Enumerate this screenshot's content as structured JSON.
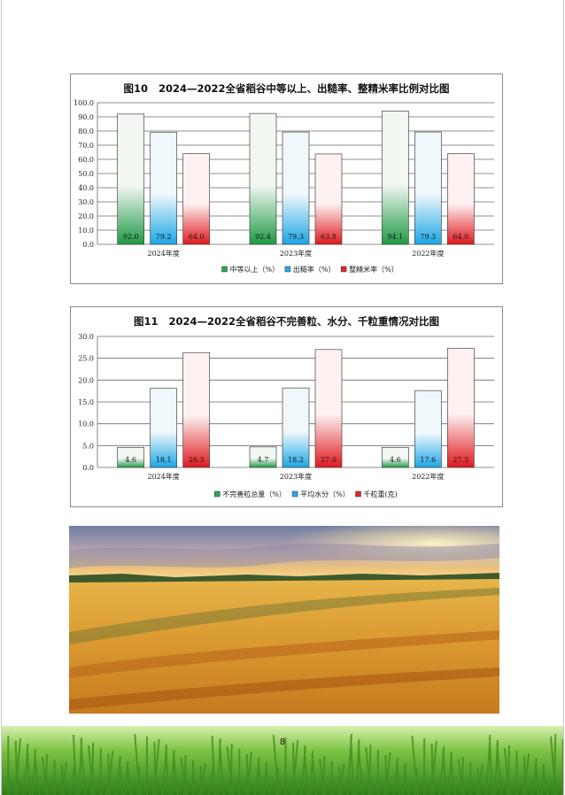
{
  "page": {
    "number": "8"
  },
  "charts": [
    {
      "figure_no": "图10",
      "title": "2024—2022全省稻谷中等以上、出糙率、整精米率比例对比图",
      "categories": [
        "2024年度",
        "2023年度",
        "2022年度"
      ],
      "ylim": [
        0,
        100
      ],
      "yticks": [
        "0.0",
        "10.0",
        "20.0",
        "30.0",
        "40.0",
        "50.0",
        "60.0",
        "70.0",
        "80.0",
        "90.0",
        "100.0"
      ],
      "series": [
        {
          "name": "中等以上（%）",
          "color": "green",
          "values": [
            92.0,
            92.4,
            94.1
          ],
          "labels": [
            "92.0",
            "92.4",
            "94.1"
          ]
        },
        {
          "name": "出糙率（%）",
          "color": "blue",
          "values": [
            79.2,
            79.3,
            79.3
          ],
          "labels": [
            "79.2",
            "79.3",
            "79.3"
          ]
        },
        {
          "name": "整精米率（%）",
          "color": "red",
          "values": [
            64.0,
            63.8,
            64.0
          ],
          "labels": [
            "64.0",
            "63.8",
            "64.0"
          ]
        }
      ]
    },
    {
      "figure_no": "图11",
      "title": "2024—2022全省稻谷不完善粒、水分、千粒重情况对比图",
      "categories": [
        "2024年度",
        "2023年度",
        "2022年度"
      ],
      "ylim": [
        0,
        30
      ],
      "yticks": [
        "0.0",
        "5.0",
        "10.0",
        "15.0",
        "20.0",
        "25.0",
        "30.0"
      ],
      "series": [
        {
          "name": "不完善粒总量（%）",
          "color": "green",
          "values": [
            4.6,
            4.7,
            4.6
          ],
          "labels": [
            "4.6",
            "4.7",
            "4.6"
          ]
        },
        {
          "name": "平均水分（%）",
          "color": "blue",
          "values": [
            18.1,
            18.2,
            17.6
          ],
          "labels": [
            "18.1",
            "18.2",
            "17.6"
          ]
        },
        {
          "name": "千粒重(克)",
          "color": "red",
          "values": [
            26.3,
            27.0,
            27.3
          ],
          "labels": [
            "26.3",
            "27.0",
            "27.3"
          ]
        }
      ]
    }
  ],
  "chart_data": [
    {
      "type": "bar",
      "title": "图10 2024—2022全省稻谷中等以上、出糙率、整精米率比例对比图",
      "categories": [
        "2024年度",
        "2023年度",
        "2022年度"
      ],
      "ylim": [
        0,
        100
      ],
      "grid": true,
      "legend": "bottom",
      "series": [
        {
          "name": "中等以上（%）",
          "values": [
            92.0,
            92.4,
            94.1
          ]
        },
        {
          "name": "出糙率（%）",
          "values": [
            79.2,
            79.3,
            79.3
          ]
        },
        {
          "name": "整精米率（%）",
          "values": [
            64.0,
            63.8,
            64.0
          ]
        }
      ]
    },
    {
      "type": "bar",
      "title": "图11 2024—2022全省稻谷不完善粒、水分、千粒重情况对比图",
      "categories": [
        "2024年度",
        "2023年度",
        "2022年度"
      ],
      "ylim": [
        0,
        30
      ],
      "grid": true,
      "legend": "bottom",
      "series": [
        {
          "name": "不完善粒总量（%）",
          "values": [
            4.6,
            4.7,
            4.6
          ]
        },
        {
          "name": "平均水分（%）",
          "values": [
            18.1,
            18.2,
            17.6
          ]
        },
        {
          "name": "千粒重(克)",
          "values": [
            26.3,
            27.0,
            27.3
          ]
        }
      ]
    }
  ]
}
